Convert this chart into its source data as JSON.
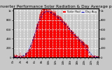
{
  "title": "Solar PV/Inverter Performance Solar Radiation & Day Average per Minute",
  "title_fontsize": 4.2,
  "bg_color": "#c8c8c8",
  "plot_bg_color": "#c8c8c8",
  "fill_color": "#ff0000",
  "line_color": "#dd0000",
  "avg_line_color": "#0000cc",
  "legend_labels": [
    "Solar Rad",
    "Day Avg"
  ],
  "legend_colors": [
    "#ff0000",
    "#0000cc"
  ],
  "ylim": [
    0,
    1000
  ],
  "ytick_positions": [
    0,
    200,
    400,
    600,
    800,
    1000
  ],
  "ytick_labels": [
    "0",
    "200",
    "400",
    "600",
    "800",
    "1k"
  ],
  "num_points": 1440,
  "grid_color": "#ffffff",
  "tick_fontsize": 2.8
}
